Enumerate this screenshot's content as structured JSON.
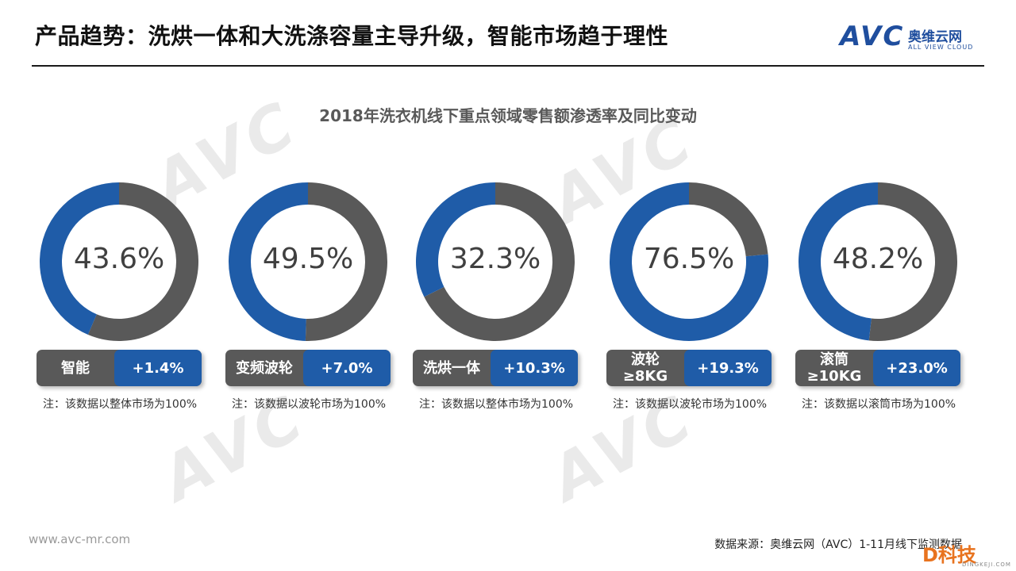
{
  "page": {
    "title": "产品趋势：洗烘一体和大洗涤容量主导升级，智能市场趋于理性",
    "logo_avc": "AVC",
    "logo_cn": "奥维云网",
    "logo_en": "ALL VIEW CLOUD",
    "watermark_avc": "AVC",
    "watermark_cn": "奥维云网",
    "watermark_en": "ALL VIEW CLOUD",
    "footer_url": "www.avc-mr.com",
    "footer_source": "数据来源：奥维云网（AVC）1-11月线下监测数据",
    "corner_logo": "D科技",
    "corner_logo_sub": "DINGKEJI.COM"
  },
  "colors": {
    "accent": "#1F5CA8",
    "remainder": "#595959",
    "label_bg": "#595959",
    "text": "#404040"
  },
  "chart_data": {
    "type": "pie",
    "variant": "donut",
    "title": "2018年洗衣机线下重点领域零售额渗透率及同比变动",
    "items": [
      {
        "category": "智能",
        "penetration": 43.6,
        "penetration_label": "43.6%",
        "yoy_change": 1.4,
        "yoy_label": "+1.4%",
        "note": "注：该数据以整体市场为100%"
      },
      {
        "category": "变频波轮",
        "penetration": 49.5,
        "penetration_label": "49.5%",
        "yoy_change": 7.0,
        "yoy_label": "+7.0%",
        "note": "注：该数据以波轮市场为100%"
      },
      {
        "category": "洗烘一体",
        "penetration": 32.3,
        "penetration_label": "32.3%",
        "yoy_change": 10.3,
        "yoy_label": "+10.3%",
        "note": "注：该数据以整体市场为100%"
      },
      {
        "category": "波轮≥8KG",
        "penetration": 76.5,
        "penetration_label": "76.5%",
        "yoy_change": 19.3,
        "yoy_label": "+19.3%",
        "note": "注：该数据以波轮市场为100%"
      },
      {
        "category": "滚筒≥10KG",
        "penetration": 48.2,
        "penetration_label": "48.2%",
        "yoy_change": 23.0,
        "yoy_label": "+23.0%",
        "note": "注：该数据以滚筒市场为100%"
      }
    ]
  }
}
